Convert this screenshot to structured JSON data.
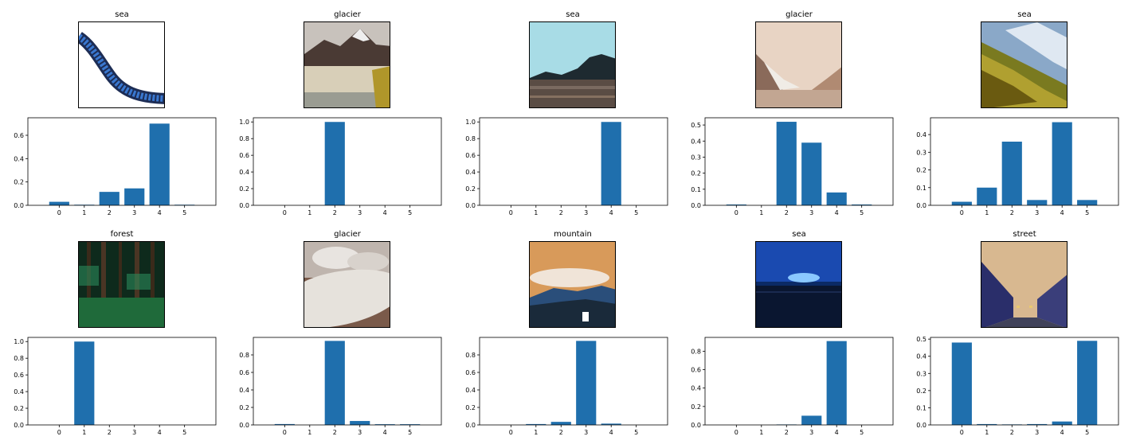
{
  "colors": {
    "bar": "#1f6fad",
    "axis": "#000000"
  },
  "panels": [
    {
      "title": "sea",
      "image": "blue-snake-on-white"
    },
    {
      "title": "glacier",
      "image": "snowy-mountain-glacier"
    },
    {
      "title": "sea",
      "image": "rocky-coast-cyan-sky"
    },
    {
      "title": "glacier",
      "image": "sepia-valley"
    },
    {
      "title": "sea",
      "image": "blue-ice-over-green-water"
    },
    {
      "title": "forest",
      "image": "green-forest"
    },
    {
      "title": "glacier",
      "image": "snow-slope-clouds"
    },
    {
      "title": "mountain",
      "image": "orange-sky-blue-mountain"
    },
    {
      "title": "sea",
      "image": "blue-night-sea"
    },
    {
      "title": "street",
      "image": "blue-street-orange-sky"
    }
  ],
  "chart_data": [
    {
      "type": "bar",
      "categories": [
        "0",
        "1",
        "2",
        "3",
        "4",
        "5"
      ],
      "values": [
        0.03,
        0.005,
        0.115,
        0.145,
        0.7,
        0.005
      ],
      "ylim": [
        0,
        0.75
      ],
      "yticks": [
        "0.0",
        "0.2",
        "0.4",
        "0.6"
      ]
    },
    {
      "type": "bar",
      "categories": [
        "0",
        "1",
        "2",
        "3",
        "4",
        "5"
      ],
      "values": [
        0,
        0,
        1.0,
        0,
        0,
        0
      ],
      "ylim": [
        0,
        1.05
      ],
      "yticks": [
        "0.0",
        "0.2",
        "0.4",
        "0.6",
        "0.8",
        "1.0"
      ]
    },
    {
      "type": "bar",
      "categories": [
        "0",
        "1",
        "2",
        "3",
        "4",
        "5"
      ],
      "values": [
        0,
        0,
        0,
        0,
        1.0,
        0
      ],
      "ylim": [
        0,
        1.05
      ],
      "yticks": [
        "0.0",
        "0.2",
        "0.4",
        "0.6",
        "0.8",
        "1.0"
      ]
    },
    {
      "type": "bar",
      "categories": [
        "0",
        "1",
        "2",
        "3",
        "4",
        "5"
      ],
      "values": [
        0.005,
        0,
        0.52,
        0.39,
        0.08,
        0.005
      ],
      "ylim": [
        0,
        0.545
      ],
      "yticks": [
        "0.0",
        "0.1",
        "0.2",
        "0.3",
        "0.4",
        "0.5"
      ]
    },
    {
      "type": "bar",
      "categories": [
        "0",
        "1",
        "2",
        "3",
        "4",
        "5"
      ],
      "values": [
        0.02,
        0.1,
        0.36,
        0.03,
        0.47,
        0.03
      ],
      "ylim": [
        0,
        0.495
      ],
      "yticks": [
        "0.0",
        "0.1",
        "0.2",
        "0.3",
        "0.4"
      ]
    },
    {
      "type": "bar",
      "categories": [
        "0",
        "1",
        "2",
        "3",
        "4",
        "5"
      ],
      "values": [
        0,
        1.0,
        0,
        0,
        0,
        0
      ],
      "ylim": [
        0,
        1.05
      ],
      "yticks": [
        "0.0",
        "0.2",
        "0.4",
        "0.6",
        "0.8",
        "1.0"
      ]
    },
    {
      "type": "bar",
      "categories": [
        "0",
        "1",
        "2",
        "3",
        "4",
        "5"
      ],
      "values": [
        0.01,
        0,
        0.96,
        0.045,
        0.008,
        0.008
      ],
      "ylim": [
        0,
        1.0
      ],
      "yticks": [
        "0.0",
        "0.2",
        "0.4",
        "0.6",
        "0.8"
      ]
    },
    {
      "type": "bar",
      "categories": [
        "0",
        "1",
        "2",
        "3",
        "4",
        "5"
      ],
      "values": [
        0,
        0.01,
        0.035,
        0.96,
        0.015,
        0
      ],
      "ylim": [
        0,
        1.0
      ],
      "yticks": [
        "0.0",
        "0.2",
        "0.4",
        "0.6",
        "0.8"
      ]
    },
    {
      "type": "bar",
      "categories": [
        "0",
        "1",
        "2",
        "3",
        "4",
        "5"
      ],
      "values": [
        0,
        0,
        0.005,
        0.1,
        0.91,
        0
      ],
      "ylim": [
        0,
        0.95
      ],
      "yticks": [
        "0.0",
        "0.2",
        "0.4",
        "0.6",
        "0.8"
      ]
    },
    {
      "type": "bar",
      "categories": [
        "0",
        "1",
        "2",
        "3",
        "4",
        "5"
      ],
      "values": [
        0.48,
        0.005,
        0.003,
        0.005,
        0.02,
        0.49
      ],
      "ylim": [
        0,
        0.51
      ],
      "yticks": [
        "0.0",
        "0.1",
        "0.2",
        "0.3",
        "0.4",
        "0.5"
      ]
    }
  ]
}
